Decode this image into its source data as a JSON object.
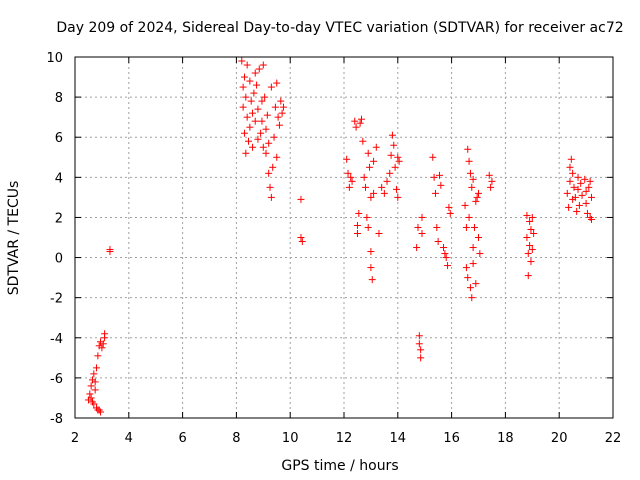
{
  "chart_data": {
    "type": "scatter",
    "title": "Day 209 of 2024, Sidereal Day-to-day VTEC variation (SDTVAR) for receiver ac72",
    "xlabel": "GPS time / hours",
    "ylabel": "SDTVAR / TECUs",
    "xlim": [
      2,
      22
    ],
    "ylim": [
      -8,
      10
    ],
    "xticks": [
      "2",
      "4",
      "6",
      "8",
      "10",
      "12",
      "14",
      "16",
      "18",
      "20",
      "22"
    ],
    "yticks": [
      "-8",
      "-6",
      "-4",
      "-2",
      "0",
      "2",
      "4",
      "6",
      "8",
      "10"
    ],
    "marker": "plus",
    "color": "#ff0000",
    "series": [
      {
        "name": "SDTVAR",
        "points": [
          [
            2.5,
            -7.1
          ],
          [
            2.55,
            -6.8
          ],
          [
            2.6,
            -6.4
          ],
          [
            2.6,
            -7.0
          ],
          [
            2.65,
            -6.1
          ],
          [
            2.7,
            -5.8
          ],
          [
            2.7,
            -7.3
          ],
          [
            2.75,
            -6.6
          ],
          [
            2.8,
            -7.5
          ],
          [
            2.8,
            -5.5
          ],
          [
            2.85,
            -4.9
          ],
          [
            2.85,
            -7.6
          ],
          [
            2.9,
            -4.4
          ],
          [
            2.95,
            -7.7
          ],
          [
            2.95,
            -4.2
          ],
          [
            3.0,
            -4.5
          ],
          [
            3.05,
            -4.3
          ],
          [
            3.1,
            -4.0
          ],
          [
            3.1,
            -3.8
          ],
          [
            2.65,
            -7.2
          ],
          [
            2.75,
            -6.2
          ],
          [
            2.9,
            -7.6
          ],
          [
            3.3,
            0.4
          ],
          [
            3.3,
            0.3
          ],
          [
            8.2,
            9.8
          ],
          [
            8.25,
            8.5
          ],
          [
            8.25,
            7.5
          ],
          [
            8.3,
            9.0
          ],
          [
            8.3,
            6.2
          ],
          [
            8.35,
            5.2
          ],
          [
            8.35,
            8.0
          ],
          [
            8.4,
            9.6
          ],
          [
            8.4,
            7.0
          ],
          [
            8.45,
            5.8
          ],
          [
            8.5,
            8.8
          ],
          [
            8.5,
            6.5
          ],
          [
            8.55,
            7.8
          ],
          [
            8.6,
            7.2
          ],
          [
            8.6,
            5.5
          ],
          [
            8.65,
            8.2
          ],
          [
            8.7,
            9.2
          ],
          [
            8.7,
            6.8
          ],
          [
            8.75,
            8.6
          ],
          [
            8.8,
            7.4
          ],
          [
            8.8,
            5.9
          ],
          [
            8.85,
            9.4
          ],
          [
            8.9,
            6.2
          ],
          [
            8.95,
            7.8
          ],
          [
            9.0,
            9.6
          ],
          [
            9.0,
            5.5
          ],
          [
            9.05,
            8.0
          ],
          [
            9.1,
            6.4
          ],
          [
            9.15,
            7.1
          ],
          [
            9.2,
            5.7
          ],
          [
            9.2,
            4.2
          ],
          [
            9.25,
            3.5
          ],
          [
            9.3,
            3.0
          ],
          [
            9.3,
            8.5
          ],
          [
            9.35,
            4.5
          ],
          [
            9.4,
            6.0
          ],
          [
            9.45,
            7.5
          ],
          [
            9.5,
            8.7
          ],
          [
            9.5,
            5.0
          ],
          [
            9.55,
            7.0
          ],
          [
            9.6,
            6.6
          ],
          [
            9.65,
            7.8
          ],
          [
            9.7,
            7.2
          ],
          [
            9.75,
            7.5
          ],
          [
            8.95,
            6.8
          ],
          [
            9.1,
            5.2
          ],
          [
            10.4,
            2.9
          ],
          [
            10.4,
            1.0
          ],
          [
            10.45,
            0.8
          ],
          [
            12.1,
            4.9
          ],
          [
            12.15,
            4.2
          ],
          [
            12.2,
            3.5
          ],
          [
            12.25,
            4.0
          ],
          [
            12.3,
            3.8
          ],
          [
            12.4,
            6.8
          ],
          [
            12.45,
            6.5
          ],
          [
            12.5,
            1.6
          ],
          [
            12.5,
            1.2
          ],
          [
            12.55,
            2.2
          ],
          [
            12.6,
            6.7
          ],
          [
            12.65,
            6.9
          ],
          [
            12.7,
            5.8
          ],
          [
            12.75,
            4.0
          ],
          [
            12.8,
            3.5
          ],
          [
            12.85,
            2.0
          ],
          [
            12.9,
            1.5
          ],
          [
            12.9,
            5.2
          ],
          [
            12.95,
            4.5
          ],
          [
            13.0,
            3.0
          ],
          [
            13.0,
            0.3
          ],
          [
            13.0,
            -0.5
          ],
          [
            13.05,
            -1.1
          ],
          [
            13.1,
            4.8
          ],
          [
            13.1,
            3.2
          ],
          [
            13.2,
            5.5
          ],
          [
            13.3,
            1.2
          ],
          [
            13.4,
            3.5
          ],
          [
            13.5,
            3.2
          ],
          [
            13.6,
            3.8
          ],
          [
            13.7,
            4.2
          ],
          [
            13.75,
            5.1
          ],
          [
            13.8,
            6.1
          ],
          [
            13.85,
            5.6
          ],
          [
            13.9,
            4.5
          ],
          [
            13.95,
            3.4
          ],
          [
            14.0,
            3.0
          ],
          [
            14.0,
            5.0
          ],
          [
            14.05,
            4.8
          ],
          [
            14.7,
            0.5
          ],
          [
            14.75,
            1.5
          ],
          [
            14.8,
            -4.3
          ],
          [
            14.8,
            -3.9
          ],
          [
            14.85,
            -4.6
          ],
          [
            14.85,
            -5.0
          ],
          [
            14.9,
            2.0
          ],
          [
            14.9,
            1.2
          ],
          [
            15.3,
            5.0
          ],
          [
            15.35,
            4.0
          ],
          [
            15.4,
            3.2
          ],
          [
            15.45,
            1.5
          ],
          [
            15.5,
            0.8
          ],
          [
            15.55,
            4.1
          ],
          [
            15.6,
            3.6
          ],
          [
            15.7,
            0.5
          ],
          [
            15.75,
            0.2
          ],
          [
            15.8,
            0.0
          ],
          [
            15.85,
            -0.4
          ],
          [
            15.9,
            2.5
          ],
          [
            15.95,
            2.2
          ],
          [
            16.5,
            2.6
          ],
          [
            16.55,
            1.5
          ],
          [
            16.55,
            -0.5
          ],
          [
            16.6,
            -1.0
          ],
          [
            16.6,
            5.4
          ],
          [
            16.65,
            4.8
          ],
          [
            16.7,
            4.2
          ],
          [
            16.7,
            -1.5
          ],
          [
            16.75,
            -2.0
          ],
          [
            16.75,
            3.5
          ],
          [
            16.8,
            0.5
          ],
          [
            16.8,
            -0.3
          ],
          [
            16.85,
            1.5
          ],
          [
            16.9,
            2.8
          ],
          [
            16.9,
            -1.3
          ],
          [
            16.95,
            3.0
          ],
          [
            17.0,
            3.2
          ],
          [
            17.0,
            1.0
          ],
          [
            17.05,
            0.2
          ],
          [
            16.65,
            2.0
          ],
          [
            16.8,
            3.9
          ],
          [
            17.4,
            4.1
          ],
          [
            17.45,
            3.5
          ],
          [
            17.5,
            3.8
          ],
          [
            18.8,
            2.1
          ],
          [
            18.8,
            1.0
          ],
          [
            18.85,
            0.2
          ],
          [
            18.85,
            -0.9
          ],
          [
            18.9,
            1.8
          ],
          [
            18.9,
            0.6
          ],
          [
            18.95,
            -0.2
          ],
          [
            18.95,
            1.4
          ],
          [
            19.0,
            2.0
          ],
          [
            19.0,
            0.4
          ],
          [
            19.05,
            1.2
          ],
          [
            20.3,
            3.2
          ],
          [
            20.35,
            2.5
          ],
          [
            20.4,
            3.8
          ],
          [
            20.4,
            4.5
          ],
          [
            20.45,
            4.9
          ],
          [
            20.5,
            4.2
          ],
          [
            20.5,
            2.9
          ],
          [
            20.55,
            3.5
          ],
          [
            20.6,
            3.0
          ],
          [
            20.65,
            2.3
          ],
          [
            20.7,
            4.0
          ],
          [
            20.7,
            3.4
          ],
          [
            20.75,
            2.6
          ],
          [
            20.8,
            3.7
          ],
          [
            20.85,
            3.1
          ],
          [
            20.95,
            3.9
          ],
          [
            21.0,
            3.3
          ],
          [
            21.0,
            2.7
          ],
          [
            21.05,
            2.2
          ],
          [
            21.1,
            3.5
          ],
          [
            21.15,
            2.0
          ],
          [
            21.2,
            3.0
          ],
          [
            21.2,
            1.9
          ],
          [
            21.15,
            3.8
          ]
        ]
      }
    ]
  }
}
